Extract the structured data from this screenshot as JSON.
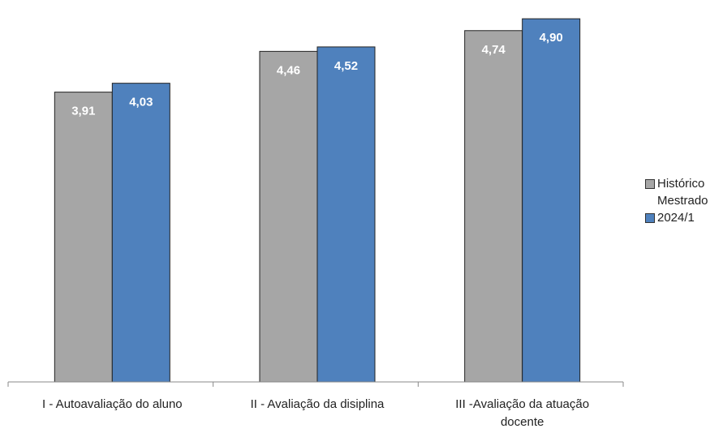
{
  "chart_data": {
    "type": "bar",
    "categories": [
      [
        "I - Autoavaliação do aluno"
      ],
      [
        "II - Avaliação da disiplina"
      ],
      [
        "III -Avaliação da atuação",
        "docente"
      ]
    ],
    "series": [
      {
        "name": "Histórico Mestrado",
        "color": "#a6a6a6",
        "values": [
          3.91,
          4.46,
          4.74
        ]
      },
      {
        "name": "2024/1",
        "color": "#4f81bd",
        "values": [
          4.03,
          4.52,
          4.9
        ]
      }
    ],
    "value_labels": [
      [
        "3,91",
        "4,46",
        "4,74"
      ],
      [
        "4,03",
        "4,52",
        "4,90"
      ]
    ],
    "ylim": [
      0,
      5
    ],
    "grid": false,
    "legend": "right"
  }
}
